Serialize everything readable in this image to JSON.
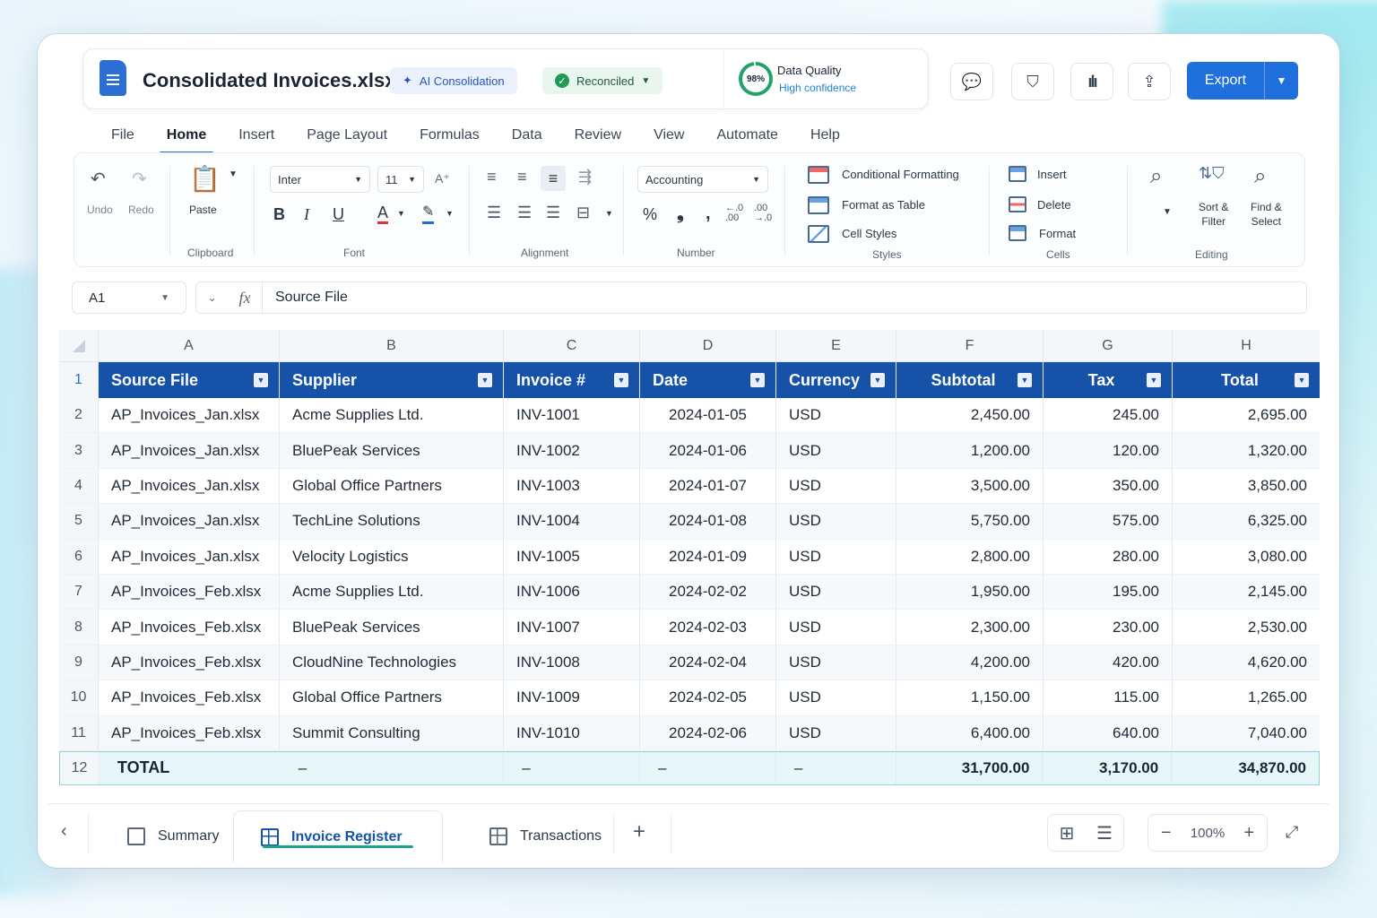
{
  "title_bar": {
    "file_name": "Consolidated Invoices.xlsx",
    "ai_badge": "AI Consolidation",
    "status_badge": "Reconciled",
    "quality": {
      "percent": "98%",
      "label": "Data Quality",
      "sub": "High confidence"
    },
    "export_label": "Export"
  },
  "menu_tabs": [
    "File",
    "Home",
    "Insert",
    "Page Layout",
    "Formulas",
    "Data",
    "Review",
    "View",
    "Automate",
    "Help"
  ],
  "active_menu_tab": "Home",
  "ribbon": {
    "undo": "Undo",
    "redo": "Redo",
    "paste": "Paste",
    "clipboard": "Clipboard",
    "font_name": "Inter",
    "font_size": "11",
    "font": "Font",
    "alignment": "Alignment",
    "number_format": "Accounting",
    "number": "Number",
    "conditional_formatting": "Conditional Formatting",
    "format_as_table": "Format as Table",
    "cell_styles": "Cell Styles",
    "styles": "Styles",
    "insert": "Insert",
    "delete": "Delete",
    "format": "Format",
    "cells": "Cells",
    "sort_filter_1": "Sort &",
    "sort_filter_2": "Filter",
    "find_select_1": "Find &",
    "find_select_2": "Select",
    "editing": "Editing"
  },
  "formula_bar": {
    "cell_ref": "A1",
    "fx": "fx",
    "value": "Source File"
  },
  "columns": [
    "A",
    "B",
    "C",
    "D",
    "E",
    "F",
    "G",
    "H"
  ],
  "headers": [
    "Source File",
    "Supplier",
    "Invoice #",
    "Date",
    "Currency",
    "Subtotal",
    "Tax",
    "Total"
  ],
  "rows": [
    [
      "2",
      "AP_Invoices_Jan.xlsx",
      "Acme Supplies Ltd.",
      "INV-1001",
      "2024-01-05",
      "USD",
      "2,450.00",
      "245.00",
      "2,695.00"
    ],
    [
      "3",
      "AP_Invoices_Jan.xlsx",
      "BluePeak Services",
      "INV-1002",
      "2024-01-06",
      "USD",
      "1,200.00",
      "120.00",
      "1,320.00"
    ],
    [
      "4",
      "AP_Invoices_Jan.xlsx",
      "Global Office Partners",
      "INV-1003",
      "2024-01-07",
      "USD",
      "3,500.00",
      "350.00",
      "3,850.00"
    ],
    [
      "5",
      "AP_Invoices_Jan.xlsx",
      "TechLine Solutions",
      "INV-1004",
      "2024-01-08",
      "USD",
      "5,750.00",
      "575.00",
      "6,325.00"
    ],
    [
      "6",
      "AP_Invoices_Jan.xlsx",
      "Velocity Logistics",
      "INV-1005",
      "2024-01-09",
      "USD",
      "2,800.00",
      "280.00",
      "3,080.00"
    ],
    [
      "7",
      "AP_Invoices_Feb.xlsx",
      "Acme Supplies Ltd.",
      "INV-1006",
      "2024-02-02",
      "USD",
      "1,950.00",
      "195.00",
      "2,145.00"
    ],
    [
      "8",
      "AP_Invoices_Feb.xlsx",
      "BluePeak Services",
      "INV-1007",
      "2024-02-03",
      "USD",
      "2,300.00",
      "230.00",
      "2,530.00"
    ],
    [
      "9",
      "AP_Invoices_Feb.xlsx",
      "CloudNine Technologies",
      "INV-1008",
      "2024-02-04",
      "USD",
      "4,200.00",
      "420.00",
      "4,620.00"
    ],
    [
      "10",
      "AP_Invoices_Feb.xlsx",
      "Global Office Partners",
      "INV-1009",
      "2024-02-05",
      "USD",
      "1,150.00",
      "115.00",
      "1,265.00"
    ],
    [
      "11",
      "AP_Invoices_Feb.xlsx",
      "Summit Consulting",
      "INV-1010",
      "2024-02-06",
      "USD",
      "6,400.00",
      "640.00",
      "7,040.00"
    ]
  ],
  "total_row": {
    "row_num": "12",
    "label": "TOTAL",
    "dash": "–",
    "subtotal": "31,700.00",
    "tax": "3,170.00",
    "total": "34,870.00"
  },
  "header_row_num": "1",
  "sheet_tabs": [
    "Summary",
    "Invoice Register",
    "Transactions"
  ],
  "active_sheet": "Invoice Register",
  "zoom": "100%",
  "colors": {
    "accent": "#1f6fdc",
    "header_fill": "#1552a8",
    "total_fill": "#e7f6f9",
    "success": "#1f9a57"
  }
}
